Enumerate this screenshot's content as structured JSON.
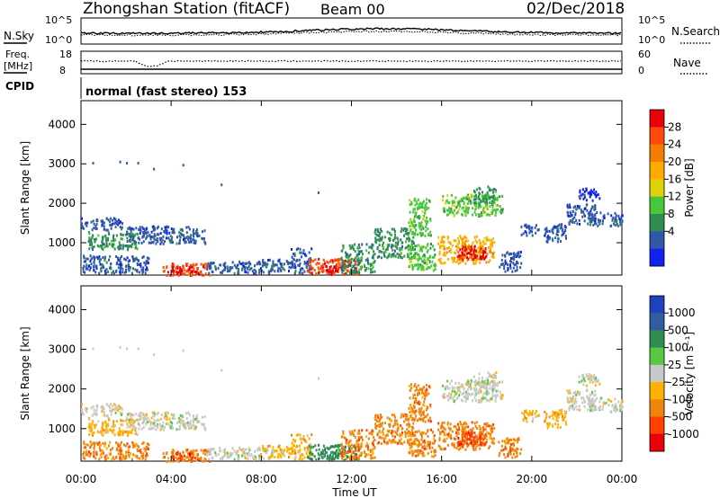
{
  "header": {
    "station": "Zhongshan Station (fitACF)",
    "beam": "Beam 00",
    "date": "02/Dec/2018"
  },
  "top_panel": {
    "left_label": "N.Sky",
    "right_label": "N.Search",
    "left_ticks": [
      "10^5",
      "10^0"
    ],
    "right_ticks": [
      "10^5",
      "10^0"
    ]
  },
  "freq_panel": {
    "left_label_1": "Freq.",
    "left_label_2": "[MHz]",
    "right_label": "Nave",
    "left_ticks": [
      "18",
      "8"
    ],
    "right_ticks": [
      "60",
      "0"
    ]
  },
  "cpid": {
    "label": "CPID",
    "text": "normal (fast stereo) 153"
  },
  "colorbars": [
    {
      "name": "Power",
      "title": "Power [dB]",
      "labels": [
        "28",
        "24",
        "20",
        "16",
        "12",
        "8",
        "4"
      ],
      "colors": [
        "#e8000a",
        "#ff4a0b",
        "#f47d00",
        "#ffaa00",
        "#e0d008",
        "#48c838",
        "#2f8c52",
        "#3158a8",
        "#1020f0"
      ]
    },
    {
      "name": "Velocity",
      "title": "Velocity [m s⁻¹]",
      "labels": [
        "1000",
        "500",
        "100",
        "25",
        "-25",
        "-100",
        "-500",
        "-1000"
      ],
      "colors": [
        "#2040c0",
        "#2f5ea0",
        "#2f8c52",
        "#57c840",
        "#c8c8c8",
        "#ffb000",
        "#f0840c",
        "#ff4000",
        "#e8000a"
      ]
    }
  ],
  "chart_data": {
    "type": "heatmap",
    "x_ticks": [
      "00:00",
      "04:00",
      "08:00",
      "12:00",
      "16:00",
      "20:00",
      "00:00"
    ],
    "xlabel": "Time UT",
    "ylabel": "Slant Range [km]",
    "y_ticks": [
      1000,
      2000,
      3000,
      4000
    ],
    "ylim": [
      180,
      4600
    ],
    "xlim": [
      0,
      24
    ],
    "panels": [
      "Power",
      "Velocity"
    ],
    "regions": [
      {
        "t": [
          0.0,
          1.8
        ],
        "r": [
          1350,
          1650
        ],
        "p": 7,
        "v": 4
      },
      {
        "t": [
          0.3,
          2.5
        ],
        "r": [
          850,
          1300
        ],
        "p": 6,
        "v": 5
      },
      {
        "t": [
          2.0,
          5.5
        ],
        "r": [
          1000,
          1450
        ],
        "p": 7,
        "v": 4
      },
      {
        "t": [
          0.0,
          3.0
        ],
        "r": [
          250,
          700
        ],
        "p": 7,
        "v": 6
      },
      {
        "t": [
          3.5,
          5.7
        ],
        "r": [
          200,
          500
        ],
        "p": 1,
        "v": 6
      },
      {
        "t": [
          4.0,
          5.2
        ],
        "r": [
          250,
          420
        ],
        "p": 0,
        "v": 7
      },
      {
        "t": [
          5.5,
          8.5
        ],
        "r": [
          250,
          550
        ],
        "p": 7,
        "v": 4
      },
      {
        "t": [
          8.0,
          9.3
        ],
        "r": [
          300,
          600
        ],
        "p": 7,
        "v": 5
      },
      {
        "t": [
          9.3,
          10.2
        ],
        "r": [
          250,
          900
        ],
        "p": 7,
        "v": 5
      },
      {
        "t": [
          10.0,
          12.4
        ],
        "r": [
          220,
          620
        ],
        "p": 1,
        "v": 2
      },
      {
        "t": [
          10.6,
          11.6
        ],
        "r": [
          260,
          460
        ],
        "p": 0,
        "v": 2
      },
      {
        "t": [
          11.5,
          13.0
        ],
        "r": [
          250,
          1000
        ],
        "p": 6,
        "v": 6
      },
      {
        "t": [
          13.0,
          14.8
        ],
        "r": [
          650,
          1400
        ],
        "p": 6,
        "v": 6
      },
      {
        "t": [
          14.5,
          15.5
        ],
        "r": [
          1200,
          2150
        ],
        "p": 5,
        "v": 6
      },
      {
        "t": [
          14.5,
          15.7
        ],
        "r": [
          300,
          1000
        ],
        "p": 5,
        "v": 6
      },
      {
        "t": [
          15.8,
          18.3
        ],
        "r": [
          500,
          1200
        ],
        "p": 3,
        "v": 6
      },
      {
        "t": [
          16.6,
          18.0
        ],
        "r": [
          600,
          950
        ],
        "p": 0,
        "v": 7
      },
      {
        "t": [
          16.0,
          18.7
        ],
        "r": [
          1700,
          2250
        ],
        "p": 5,
        "v": 4
      },
      {
        "t": [
          17.4,
          18.4
        ],
        "r": [
          2000,
          2450
        ],
        "p": 6,
        "v": 4
      },
      {
        "t": [
          18.5,
          19.5
        ],
        "r": [
          300,
          800
        ],
        "p": 7,
        "v": 6
      },
      {
        "t": [
          19.5,
          20.3
        ],
        "r": [
          1200,
          1500
        ],
        "p": 7,
        "v": 5
      },
      {
        "t": [
          20.5,
          21.5
        ],
        "r": [
          1000,
          1500
        ],
        "p": 7,
        "v": 5
      },
      {
        "t": [
          21.5,
          22.8
        ],
        "r": [
          1500,
          2000
        ],
        "p": 7,
        "v": 4
      },
      {
        "t": [
          22.5,
          24.0
        ],
        "r": [
          1450,
          1800
        ],
        "p": 7,
        "v": 4
      },
      {
        "t": [
          22.0,
          23.0
        ],
        "r": [
          2100,
          2400
        ],
        "p": 8,
        "v": 4
      }
    ]
  }
}
